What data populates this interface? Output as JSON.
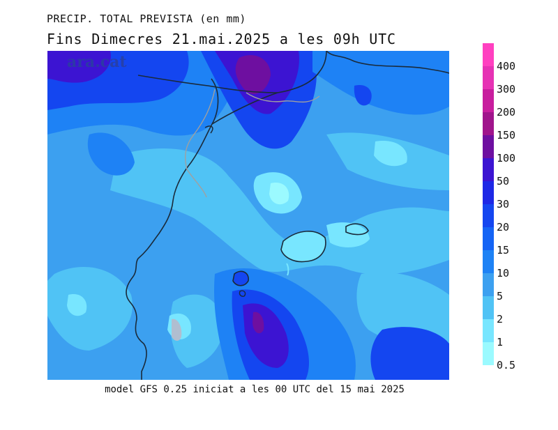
{
  "title_line1": "PRECIP. TOTAL PREVISTA (en mm)",
  "title_line2": "Fins Dimecres  21.mai.2025  a les 09h  UTC",
  "watermark": "ara.cat",
  "footer": "model GFS 0.25 iniciat a les 00 UTC del 15 mai 2025",
  "legend": {
    "labels": [
      "400",
      "300",
      "200",
      "150",
      "100",
      "50",
      "30",
      "20",
      "15",
      "10",
      "5",
      "2",
      "1",
      "0.5"
    ],
    "colors": [
      "#ff40c0",
      "#e632b4",
      "#c81e9e",
      "#a0148c",
      "#6e0fa0",
      "#3c14d2",
      "#1e28e6",
      "#1446f0",
      "#1464f5",
      "#1e82f5",
      "#3ca0f0",
      "#50c3f5",
      "#78e6ff",
      "#9bfaff"
    ]
  },
  "map": {
    "colors": {
      "ocean_light": "#50c3f5",
      "medium": "#3ca0f0",
      "blue": "#1e82f5",
      "deep": "#1464f5",
      "dark": "#1446f0",
      "darker": "#3c14d2",
      "purple": "#6e0fa0",
      "cyan": "#78e6ff",
      "pale": "#9bfaff",
      "coast": "#1a2a3a",
      "border": "#a0a0a0"
    }
  }
}
